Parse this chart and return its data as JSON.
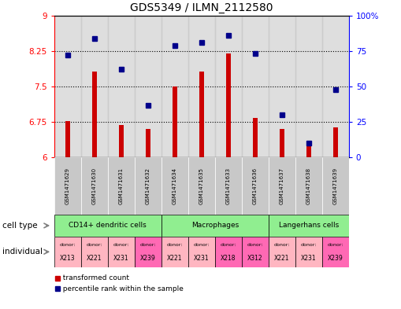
{
  "title": "GDS5349 / ILMN_2112580",
  "samples": [
    "GSM1471629",
    "GSM1471630",
    "GSM1471631",
    "GSM1471632",
    "GSM1471634",
    "GSM1471635",
    "GSM1471633",
    "GSM1471636",
    "GSM1471637",
    "GSM1471638",
    "GSM1471639"
  ],
  "red_values": [
    6.77,
    7.81,
    6.69,
    6.6,
    7.5,
    7.81,
    8.2,
    6.83,
    6.6,
    6.3,
    6.63
  ],
  "blue_values": [
    72,
    84,
    62,
    37,
    79,
    81,
    86,
    73,
    30,
    10,
    48
  ],
  "y_min": 6.0,
  "y_max": 9.0,
  "y_ticks": [
    6.0,
    6.75,
    7.5,
    8.25,
    9.0
  ],
  "y_tick_labels": [
    "6",
    "6.75",
    "7.5",
    "8.25",
    "9"
  ],
  "y2_ticks": [
    0,
    25,
    50,
    75,
    100
  ],
  "y2_tick_labels": [
    "0",
    "25",
    "50",
    "75",
    "100%"
  ],
  "dotted_lines": [
    6.75,
    7.5,
    8.25
  ],
  "cell_type_groups": [
    {
      "label": "CD14+ dendritic cells",
      "start": 0,
      "end": 3,
      "color": "#90EE90"
    },
    {
      "label": "Macrophages",
      "start": 4,
      "end": 7,
      "color": "#90EE90"
    },
    {
      "label": "Langerhans cells",
      "start": 8,
      "end": 10,
      "color": "#90EE90"
    }
  ],
  "individual_donors": [
    "X213",
    "X221",
    "X231",
    "X239",
    "X221",
    "X231",
    "X218",
    "X312",
    "X221",
    "X231",
    "X239"
  ],
  "individual_bg_colors": [
    "#FFB6C1",
    "#FFB6C1",
    "#FFB6C1",
    "#FF69B4",
    "#FFB6C1",
    "#FFB6C1",
    "#FF69B4",
    "#FF69B4",
    "#FFB6C1",
    "#FFB6C1",
    "#FF69B4"
  ],
  "bar_color": "#CC0000",
  "dot_color": "#00008B",
  "sample_bg": "#C8C8C8",
  "legend_red": "#CC0000",
  "legend_blue": "#00008B"
}
